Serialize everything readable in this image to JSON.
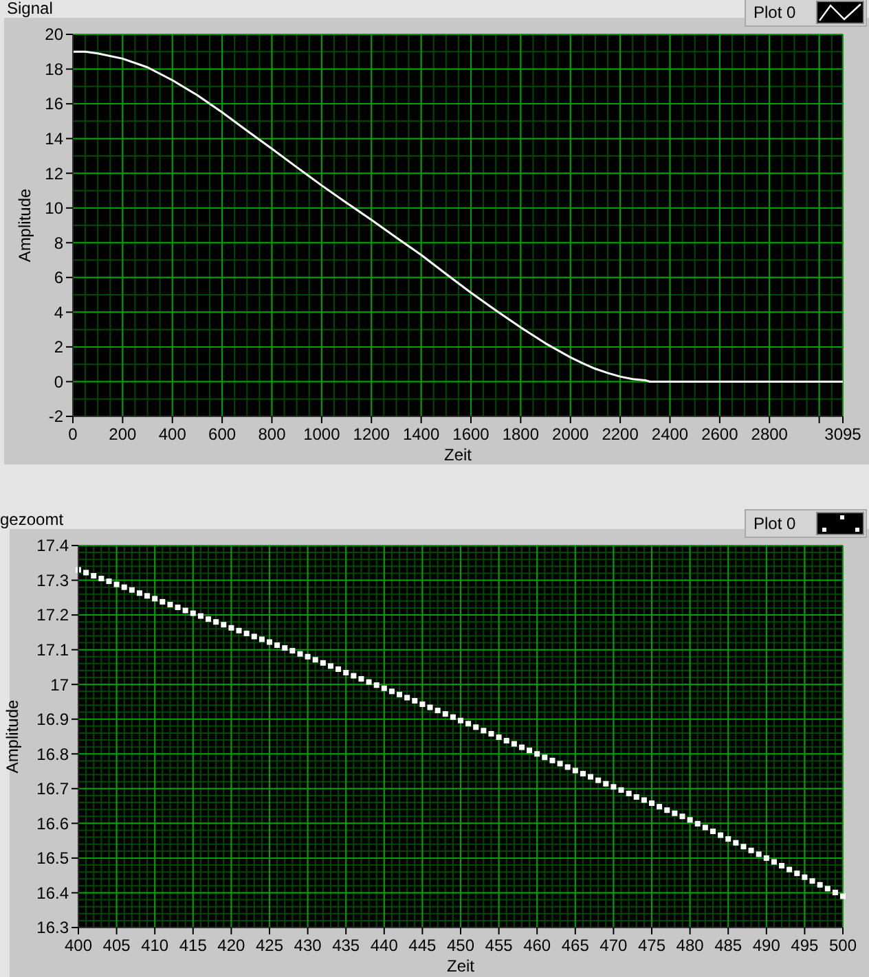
{
  "chart_data": [
    {
      "type": "line",
      "title": "Signal",
      "xlabel": "Zeit",
      "ylabel": "Amplitude",
      "legend": "top right",
      "grid": true,
      "marker": "none",
      "line_style": "solid",
      "xlim": [
        0,
        3095
      ],
      "ylim": [
        -2,
        20
      ],
      "xticks": [
        0,
        200,
        400,
        600,
        800,
        1000,
        1200,
        1400,
        1600,
        1800,
        2000,
        2200,
        2400,
        2600,
        2800,
        {
          "value": 3000,
          "label": null
        },
        3095
      ],
      "yticks": [
        -2,
        0,
        2,
        4,
        6,
        8,
        10,
        12,
        14,
        16,
        18,
        20
      ],
      "x": [
        0,
        50,
        100,
        200,
        300,
        400,
        500,
        600,
        700,
        800,
        900,
        1000,
        1100,
        1200,
        1300,
        1400,
        1500,
        1600,
        1700,
        1800,
        1900,
        2000,
        2050,
        2100,
        2150,
        2200,
        2250,
        2300,
        2320,
        3095
      ],
      "series": [
        {
          "name": "Plot 0",
          "color": "#ffffff",
          "values": [
            19,
            19,
            18.9,
            18.6,
            18.1,
            17.36,
            16.5,
            15.51,
            14.45,
            13.41,
            12.35,
            11.3,
            10.3,
            9.32,
            8.3,
            7.3,
            6.2,
            5.12,
            4.1,
            3.12,
            2.2,
            1.4,
            1.05,
            0.74,
            0.5,
            0.29,
            0.15,
            0.08,
            0,
            0
          ]
        }
      ]
    },
    {
      "type": "scatter",
      "title": "gezoomt",
      "xlabel": "Zeit",
      "ylabel": "Amplitude",
      "legend": "top right",
      "grid": true,
      "marker": "square",
      "xlim": [
        400,
        500
      ],
      "ylim": [
        16.3,
        17.4
      ],
      "xticks": [
        400,
        405,
        410,
        415,
        420,
        425,
        430,
        435,
        440,
        445,
        450,
        455,
        460,
        465,
        470,
        475,
        480,
        485,
        490,
        495,
        500
      ],
      "yticks": [
        16.3,
        16.4,
        16.5,
        16.6,
        16.7,
        16.8,
        16.9,
        17,
        17.1,
        17.2,
        17.3,
        17.4
      ],
      "x": [
        400,
        401,
        402,
        403,
        404,
        405,
        406,
        407,
        408,
        409,
        410,
        411,
        412,
        413,
        414,
        415,
        416,
        417,
        418,
        419,
        420,
        421,
        422,
        423,
        424,
        425,
        426,
        427,
        428,
        429,
        430,
        431,
        432,
        433,
        434,
        435,
        436,
        437,
        438,
        439,
        440,
        441,
        442,
        443,
        444,
        445,
        446,
        447,
        448,
        449,
        450,
        451,
        452,
        453,
        454,
        455,
        456,
        457,
        458,
        459,
        460,
        461,
        462,
        463,
        464,
        465,
        466,
        467,
        468,
        469,
        470,
        471,
        472,
        473,
        474,
        475,
        476,
        477,
        478,
        479,
        480,
        481,
        482,
        483,
        484,
        485,
        486,
        487,
        488,
        489,
        490,
        491,
        492,
        493,
        494,
        495,
        496,
        497,
        498,
        499,
        500
      ],
      "series": [
        {
          "name": "Plot 0",
          "color": "#ffffff",
          "values": [
            17.33,
            17.322,
            17.313,
            17.305,
            17.297,
            17.288,
            17.28,
            17.272,
            17.263,
            17.255,
            17.247,
            17.238,
            17.23,
            17.222,
            17.213,
            17.205,
            17.197,
            17.188,
            17.18,
            17.172,
            17.163,
            17.155,
            17.147,
            17.138,
            17.13,
            17.122,
            17.113,
            17.105,
            17.097,
            17.088,
            17.08,
            17.071,
            17.062,
            17.053,
            17.044,
            17.034,
            17.025,
            17.016,
            17.007,
            16.998,
            16.989,
            16.98,
            16.971,
            16.962,
            16.953,
            16.943,
            16.934,
            16.925,
            16.915,
            16.906,
            16.896,
            16.887,
            16.877,
            16.867,
            16.858,
            16.848,
            16.838,
            16.829,
            16.819,
            16.81,
            16.8,
            16.79,
            16.781,
            16.772,
            16.762,
            16.752,
            16.743,
            16.734,
            16.724,
            16.714,
            16.705,
            16.696,
            16.686,
            16.676,
            16.667,
            16.658,
            16.648,
            16.638,
            16.629,
            16.62,
            16.61,
            16.599,
            16.588,
            16.577,
            16.566,
            16.555,
            16.544,
            16.533,
            16.522,
            16.511,
            16.5,
            16.489,
            16.478,
            16.467,
            16.456,
            16.445,
            16.434,
            16.423,
            16.412,
            16.401,
            16.39
          ]
        }
      ]
    }
  ]
}
